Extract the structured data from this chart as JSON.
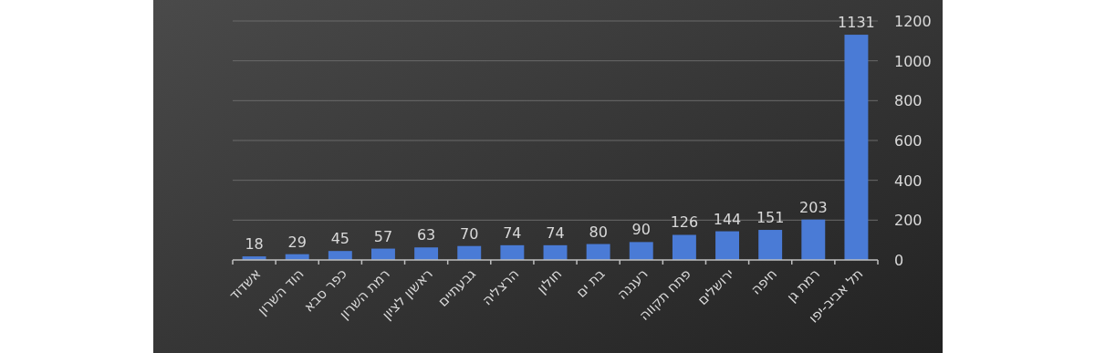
{
  "chart_data": {
    "type": "bar",
    "categories": [
      "אשדוד",
      "הוד השרון",
      "כפר סבא",
      "רמת השרון",
      "ראשון לציון",
      "גבעתיים",
      "הרצליה",
      "חולון",
      "בת ים",
      "רעננה",
      "פתח תקווה",
      "ירושלים",
      "חיפה",
      "רמת גן",
      "תל אביב-יפו"
    ],
    "values": [
      18,
      29,
      45,
      57,
      63,
      70,
      74,
      74,
      80,
      90,
      126,
      144,
      151,
      203,
      1131
    ],
    "color": "#4a7bd6",
    "ylim": [
      0,
      1200
    ],
    "yticks": [
      0,
      200,
      400,
      600,
      800,
      1000,
      1200
    ],
    "grid": "y",
    "data_labels": true
  }
}
